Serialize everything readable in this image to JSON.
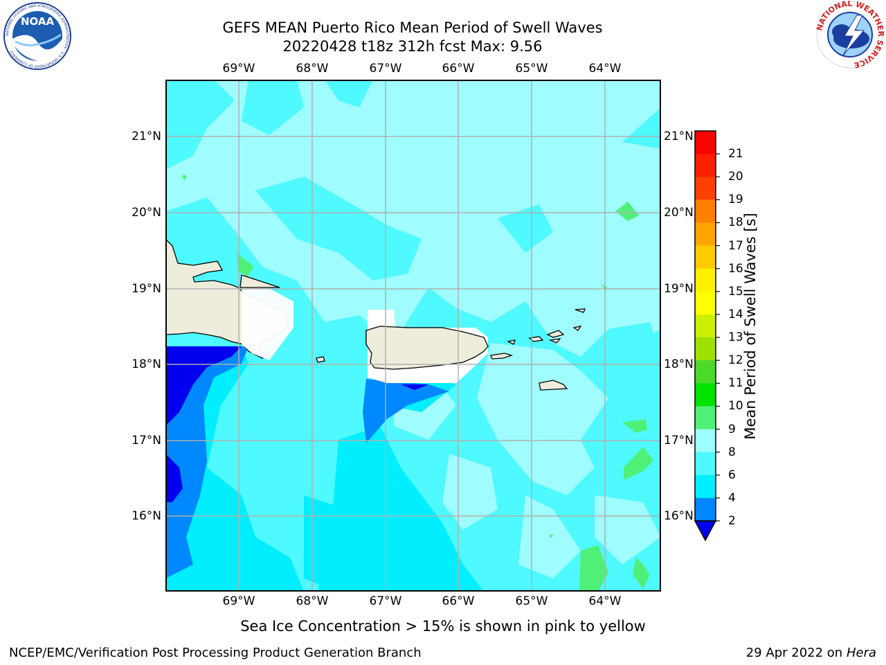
{
  "header": {
    "title_line1": "GEFS MEAN Puerto Rico Mean Period of Swell Waves",
    "title_line2": "20220428 t18z 312h fcst   Max: 9.56"
  },
  "logos": {
    "left": {
      "text": "NOAA",
      "ring_text": "NATIONAL OCEANIC AND ATMOSPHERIC ADMINISTRATION · U.S. DEPARTMENT OF COMMERCE"
    },
    "right": {
      "ring_text": "NATIONAL WEATHER SERVICE"
    }
  },
  "map": {
    "lon_labels": [
      "69°W",
      "68°W",
      "67°W",
      "66°W",
      "65°W",
      "64°W"
    ],
    "lat_labels": [
      "21°N",
      "20°N",
      "19°N",
      "18°N",
      "17°N",
      "16°N"
    ],
    "ocean_color": "#9ffcff",
    "land_color": "#eeeddc"
  },
  "colorbar": {
    "label": "Mean Period of Swell Waves [s]",
    "ticks": [
      "2",
      "4",
      "6",
      "8",
      "9",
      "10",
      "11",
      "12",
      "13",
      "14",
      "15",
      "16",
      "17",
      "18",
      "19",
      "20",
      "21"
    ],
    "colors": [
      "#0000ee",
      "#0088ff",
      "#00eeff",
      "#4ef9ff",
      "#9ffcff",
      "#4ff078",
      "#00e400",
      "#4bd92a",
      "#a0e000",
      "#cdef00",
      "#ffff00",
      "#fff000",
      "#ffcc00",
      "#ffa500",
      "#ff8000",
      "#ff4000",
      "#ff2000",
      "#ff0000"
    ],
    "under_color": "#0000ee"
  },
  "note": "Sea Ice Concentration > 15% is shown in pink to yellow",
  "footer": {
    "left": "NCEP/EMC/Verification Post Processing Product Generation Branch",
    "right_date": "29 Apr 2022 on ",
    "right_machine": "Hera"
  }
}
